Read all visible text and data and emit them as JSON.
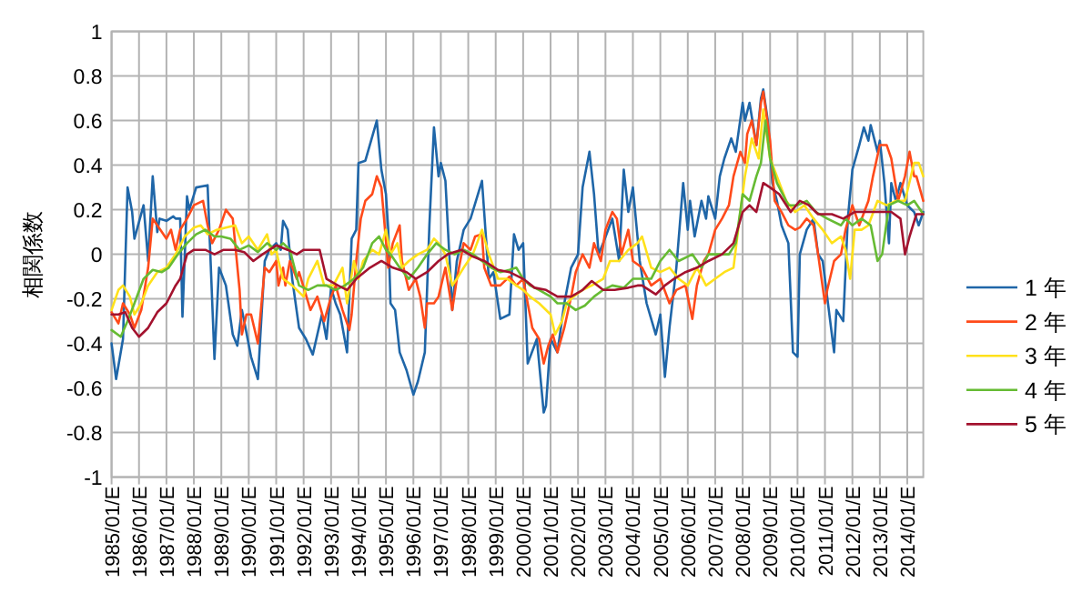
{
  "chart_data": {
    "type": "line",
    "ylabel": "相関係数",
    "xlim": [
      "1985-01",
      "2014-08"
    ],
    "xticks": [
      {
        "value": "1985-01",
        "label": "1985/01/E"
      },
      {
        "value": "1986-01",
        "label": "1986/01/E"
      },
      {
        "value": "1987-01",
        "label": "1987/01/E"
      },
      {
        "value": "1988-01",
        "label": "1988/01/E"
      },
      {
        "value": "1989-01",
        "label": "1989/01/E"
      },
      {
        "value": "1990-01",
        "label": "1990/01/E"
      },
      {
        "value": "1991-01",
        "label": "1991/01/E"
      },
      {
        "value": "1992-01",
        "label": "1992/01/E"
      },
      {
        "value": "1993-01",
        "label": "1993/01/E"
      },
      {
        "value": "1994-01",
        "label": "1994/01/E"
      },
      {
        "value": "1995-01",
        "label": "1995/01/E"
      },
      {
        "value": "1996-01",
        "label": "1996/01/E"
      },
      {
        "value": "1997-01",
        "label": "1997/01/E"
      },
      {
        "value": "1998-01",
        "label": "1998/01/E"
      },
      {
        "value": "1999-01",
        "label": "1999/01/E"
      },
      {
        "value": "2000-01",
        "label": "2000/01/E"
      },
      {
        "value": "2001-01",
        "label": "2001/01/E"
      },
      {
        "value": "2002-01",
        "label": "2002/01/E"
      },
      {
        "value": "2003-01",
        "label": "2003/01/E"
      },
      {
        "value": "2004-01",
        "label": "2004/01/E"
      },
      {
        "value": "2005-01",
        "label": "2005/01/E"
      },
      {
        "value": "2006-01",
        "label": "2006/01/E"
      },
      {
        "value": "2007-01",
        "label": "2007/01/E"
      },
      {
        "value": "2008-01",
        "label": "2008/01/E"
      },
      {
        "value": "2009-01",
        "label": "2009/01/E"
      },
      {
        "value": "2010-01",
        "label": "2010/01/E"
      },
      {
        "value": "2011-01",
        "label": "2011/01/E"
      },
      {
        "value": "2012-01",
        "label": "2012/01/E"
      },
      {
        "value": "2013-01",
        "label": "2013/01/E"
      },
      {
        "value": "2014-01",
        "label": "2014/01/E"
      }
    ],
    "ylim": [
      -1,
      1
    ],
    "yticks": [
      -1,
      -0.8,
      -0.6,
      -0.4,
      -0.2,
      0,
      0.2,
      0.4,
      0.6,
      0.8,
      1
    ],
    "grid": true,
    "legend": "right",
    "series": [
      {
        "name": "1 年",
        "color": "#1f66a8",
        "x": [
          "1985-01",
          "1985-03",
          "1985-06",
          "1985-08",
          "1985-10",
          "1985-11",
          "1986-03",
          "1986-05",
          "1986-07",
          "1986-09",
          "1986-10",
          "1987-01",
          "1987-04",
          "1987-05",
          "1987-07",
          "1987-08",
          "1987-10",
          "1987-11",
          "1988-02",
          "1988-07",
          "1988-08",
          "1988-10",
          "1988-12",
          "1989-03",
          "1989-06",
          "1989-08",
          "1989-10",
          "1989-11",
          "1990-02",
          "1990-05",
          "1990-06",
          "1990-08",
          "1990-10",
          "1991-01",
          "1991-03",
          "1991-04",
          "1991-06",
          "1991-08",
          "1991-11",
          "1992-02",
          "1992-05",
          "1992-07",
          "1992-09",
          "1992-11",
          "1993-01",
          "1993-03",
          "1993-05",
          "1993-08",
          "1993-10",
          "1993-12",
          "1994-01",
          "1994-04",
          "1994-09",
          "1994-11",
          "1995-01",
          "1995-02",
          "1995-03",
          "1995-05",
          "1995-07",
          "1995-10",
          "1996-01",
          "1996-03",
          "1996-06",
          "1996-08",
          "1996-10",
          "1996-12",
          "1997-01",
          "1997-03",
          "1997-06",
          "1997-08",
          "1997-11",
          "1998-02",
          "1998-07",
          "1998-10",
          "1998-12",
          "1999-03",
          "1999-07",
          "1999-09",
          "1999-11",
          "2000-01",
          "2000-03",
          "2000-07",
          "2000-10",
          "2000-11",
          "2001-01",
          "2001-04",
          "2001-07",
          "2001-10",
          "2002-01",
          "2002-03",
          "2002-06",
          "2002-08",
          "2002-10",
          "2002-12",
          "2003-04",
          "2003-07",
          "2003-09",
          "2003-11",
          "2004-01",
          "2004-04",
          "2004-07",
          "2004-11",
          "2005-01",
          "2005-03",
          "2005-05",
          "2005-08",
          "2005-11",
          "2006-01",
          "2006-02",
          "2006-04",
          "2006-07",
          "2006-09",
          "2006-10",
          "2007-01",
          "2007-03",
          "2007-05",
          "2007-08",
          "2007-10",
          "2008-01",
          "2008-02",
          "2008-04",
          "2008-07",
          "2008-09",
          "2008-10",
          "2008-12",
          "2009-02",
          "2009-04",
          "2009-06",
          "2009-09",
          "2009-11",
          "2010-01",
          "2010-02",
          "2010-05",
          "2010-08",
          "2010-10",
          "2010-12",
          "2011-05",
          "2011-06",
          "2011-09",
          "2011-11",
          "2012-01",
          "2012-04",
          "2012-06",
          "2012-08",
          "2012-09",
          "2012-12",
          "2013-01",
          "2013-03",
          "2013-05",
          "2013-06",
          "2013-08",
          "2013-10",
          "2014-01",
          "2014-04",
          "2014-06",
          "2014-08"
        ],
        "values": [
          -0.4,
          -0.56,
          -0.38,
          0.3,
          0.19,
          0.07,
          0.22,
          -0.03,
          0.35,
          0.1,
          0.16,
          0.15,
          0.17,
          0.16,
          0.16,
          -0.28,
          0.26,
          0.2,
          0.3,
          0.31,
          0.05,
          -0.47,
          -0.06,
          -0.14,
          -0.36,
          -0.41,
          -0.25,
          -0.3,
          -0.46,
          -0.56,
          -0.38,
          -0.03,
          0.02,
          0.05,
          0.02,
          0.15,
          0.11,
          -0.11,
          -0.33,
          -0.38,
          -0.45,
          -0.36,
          -0.27,
          -0.38,
          -0.15,
          -0.22,
          -0.27,
          -0.44,
          0.07,
          0.11,
          0.41,
          0.42,
          0.6,
          0.38,
          0.27,
          0.11,
          -0.22,
          -0.25,
          -0.44,
          -0.52,
          -0.63,
          -0.57,
          -0.44,
          0.13,
          0.57,
          0.35,
          0.41,
          0.33,
          -0.25,
          -0.03,
          0.11,
          0.16,
          0.33,
          -0.11,
          -0.08,
          -0.29,
          -0.27,
          0.09,
          0.02,
          0.05,
          -0.49,
          -0.38,
          -0.71,
          -0.68,
          -0.38,
          -0.44,
          -0.22,
          -0.06,
          0.0,
          0.3,
          0.46,
          0.27,
          0.0,
          0.05,
          0.16,
          -0.03,
          0.38,
          0.19,
          0.3,
          -0.03,
          -0.22,
          -0.36,
          -0.27,
          -0.55,
          -0.33,
          -0.06,
          0.32,
          0.11,
          0.24,
          0.08,
          0.24,
          0.16,
          0.26,
          0.16,
          0.35,
          0.43,
          0.52,
          0.46,
          0.68,
          0.6,
          0.68,
          0.49,
          0.7,
          0.74,
          0.6,
          0.32,
          0.24,
          0.13,
          0.05,
          -0.44,
          -0.46,
          0.0,
          0.11,
          0.16,
          0.0,
          -0.03,
          -0.44,
          -0.25,
          -0.3,
          0.16,
          0.38,
          0.49,
          0.57,
          0.51,
          0.58,
          0.46,
          0.51,
          0.32,
          0.05,
          0.32,
          0.24,
          0.32,
          0.22,
          0.19,
          0.13,
          0.19
        ]
      },
      {
        "name": "2 年",
        "color": "#ff4a1a",
        "x": [
          "1985-01",
          "1985-04",
          "1985-06",
          "1985-09",
          "1985-11",
          "1986-02",
          "1986-05",
          "1986-07",
          "1986-09",
          "1987-01",
          "1987-03",
          "1987-05",
          "1987-07",
          "1987-10",
          "1988-01",
          "1988-05",
          "1988-07",
          "1988-09",
          "1988-12",
          "1989-03",
          "1989-06",
          "1989-09",
          "1989-10",
          "1989-12",
          "1990-02",
          "1990-05",
          "1990-08",
          "1990-10",
          "1991-01",
          "1991-02",
          "1991-04",
          "1991-05",
          "1991-07",
          "1991-10",
          "1991-11",
          "1992-04",
          "1992-07",
          "1992-10",
          "1993-01",
          "1993-03",
          "1993-06",
          "1993-09",
          "1993-10",
          "1993-12",
          "1994-02",
          "1994-04",
          "1994-07",
          "1994-09",
          "1994-11",
          "1995-02",
          "1995-04",
          "1995-07",
          "1995-08",
          "1995-11",
          "1996-02",
          "1996-04",
          "1996-06",
          "1996-07",
          "1996-10",
          "1996-12",
          "1997-03",
          "1997-06",
          "1997-08",
          "1997-11",
          "1998-02",
          "1998-04",
          "1998-07",
          "1998-08",
          "1998-11",
          "1999-03",
          "1999-07",
          "1999-10",
          "2000-01",
          "2000-03",
          "2000-05",
          "2000-08",
          "2000-10",
          "2000-12",
          "2001-02",
          "2001-04",
          "2001-07",
          "2001-10",
          "2001-12",
          "2002-03",
          "2002-06",
          "2002-08",
          "2002-11",
          "2003-01",
          "2003-04",
          "2003-06",
          "2003-08",
          "2003-11",
          "2004-01",
          "2004-05",
          "2004-09",
          "2005-01",
          "2005-05",
          "2005-08",
          "2005-12",
          "2006-03",
          "2006-05",
          "2006-08",
          "2006-10",
          "2007-01",
          "2007-04",
          "2007-07",
          "2007-09",
          "2007-12",
          "2008-02",
          "2008-03",
          "2008-05",
          "2008-07",
          "2008-09",
          "2008-10",
          "2009-01",
          "2009-03",
          "2009-06",
          "2009-09",
          "2009-12",
          "2010-02",
          "2010-05",
          "2010-08",
          "2010-10",
          "2011-01",
          "2011-02",
          "2011-05",
          "2011-08",
          "2011-10",
          "2012-01",
          "2012-04",
          "2012-08",
          "2012-10",
          "2013-01",
          "2013-04",
          "2013-06",
          "2013-09",
          "2013-12",
          "2014-02",
          "2014-04",
          "2014-05",
          "2014-08"
        ],
        "values": [
          -0.26,
          -0.31,
          -0.22,
          -0.27,
          -0.33,
          -0.25,
          -0.06,
          0.16,
          0.13,
          0.07,
          0.11,
          0.02,
          0.11,
          0.16,
          0.22,
          0.24,
          0.13,
          0.05,
          0.11,
          0.2,
          0.16,
          -0.16,
          -0.36,
          -0.27,
          -0.27,
          -0.4,
          -0.06,
          -0.08,
          -0.03,
          -0.14,
          -0.06,
          -0.14,
          -0.03,
          -0.11,
          -0.08,
          -0.25,
          -0.19,
          -0.3,
          -0.19,
          -0.14,
          -0.25,
          -0.34,
          -0.27,
          -0.03,
          0.16,
          0.24,
          0.27,
          0.35,
          0.3,
          -0.06,
          0.05,
          0.13,
          -0.03,
          -0.16,
          -0.11,
          -0.19,
          -0.33,
          -0.22,
          -0.22,
          -0.19,
          -0.06,
          -0.25,
          -0.11,
          0.05,
          0.02,
          0.08,
          0.09,
          -0.06,
          -0.14,
          -0.14,
          -0.1,
          -0.14,
          -0.11,
          -0.22,
          -0.33,
          -0.38,
          -0.49,
          -0.41,
          -0.36,
          -0.44,
          -0.33,
          -0.19,
          -0.08,
          0.0,
          -0.06,
          0.05,
          -0.03,
          0.11,
          0.19,
          0.16,
          0.0,
          0.11,
          -0.03,
          -0.06,
          -0.14,
          -0.11,
          -0.22,
          -0.16,
          -0.14,
          -0.29,
          -0.14,
          -0.03,
          0.0,
          0.11,
          0.16,
          0.22,
          0.35,
          0.46,
          0.41,
          0.54,
          0.6,
          0.49,
          0.68,
          0.73,
          0.51,
          0.24,
          0.19,
          0.13,
          0.11,
          0.12,
          0.16,
          0.13,
          0.0,
          -0.22,
          -0.16,
          -0.03,
          0.0,
          0.11,
          0.22,
          0.13,
          0.24,
          0.35,
          0.49,
          0.49,
          0.43,
          0.24,
          0.35,
          0.46,
          0.35,
          0.35,
          0.24
        ]
      },
      {
        "name": "3 年",
        "color": "#ffe11a",
        "x": [
          "1985-01",
          "1985-04",
          "1985-06",
          "1985-09",
          "1985-11",
          "1986-02",
          "1986-05",
          "1986-09",
          "1987-01",
          "1987-05",
          "1987-09",
          "1988-01",
          "1988-04",
          "1988-07",
          "1988-11",
          "1989-03",
          "1989-07",
          "1989-10",
          "1990-01",
          "1990-05",
          "1990-09",
          "1990-11",
          "1991-01",
          "1991-02",
          "1991-04",
          "1991-08",
          "1992-01",
          "1992-03",
          "1992-07",
          "1992-10",
          "1993-02",
          "1993-06",
          "1993-08",
          "1993-11",
          "1994-01",
          "1994-03",
          "1994-07",
          "1994-10",
          "1995-01",
          "1995-03",
          "1995-06",
          "1995-08",
          "1995-11",
          "1996-03",
          "1996-07",
          "1996-10",
          "1996-12",
          "1997-03",
          "1997-06",
          "1997-08",
          "1997-11",
          "1998-03",
          "1998-07",
          "1998-10",
          "1999-02",
          "1999-06",
          "1999-10",
          "2000-01",
          "2000-04",
          "2000-08",
          "2001-01",
          "2001-03",
          "2001-06",
          "2001-08",
          "2001-11",
          "2002-03",
          "2002-07",
          "2002-12",
          "2003-03",
          "2003-07",
          "2003-11",
          "2004-03",
          "2004-05",
          "2004-09",
          "2005-01",
          "2005-05",
          "2005-09",
          "2006-01",
          "2006-05",
          "2006-09",
          "2007-01",
          "2007-05",
          "2007-09",
          "2007-12",
          "2008-02",
          "2008-05",
          "2008-08",
          "2008-10",
          "2009-01",
          "2009-04",
          "2009-08",
          "2009-12",
          "2010-04",
          "2010-08",
          "2010-12",
          "2011-04",
          "2011-08",
          "2011-10",
          "2011-12",
          "2012-02",
          "2012-05",
          "2012-08",
          "2012-12",
          "2013-04",
          "2013-08",
          "2013-12",
          "2014-04",
          "2014-06",
          "2014-08"
        ],
        "values": [
          -0.25,
          -0.16,
          -0.14,
          -0.19,
          -0.27,
          -0.22,
          -0.14,
          -0.08,
          -0.06,
          0.0,
          0.08,
          0.12,
          0.13,
          0.09,
          0.11,
          0.12,
          0.13,
          0.05,
          0.08,
          0.02,
          0.09,
          0.0,
          0.02,
          -0.03,
          -0.11,
          -0.14,
          -0.19,
          -0.11,
          -0.03,
          -0.14,
          -0.14,
          -0.06,
          -0.22,
          -0.03,
          -0.11,
          -0.03,
          0.02,
          0.0,
          0.11,
          0.0,
          0.05,
          -0.06,
          -0.03,
          0.0,
          0.02,
          0.07,
          0.05,
          0.0,
          -0.14,
          -0.11,
          -0.06,
          0.0,
          0.11,
          0.0,
          -0.11,
          -0.11,
          -0.14,
          -0.16,
          -0.19,
          -0.22,
          -0.27,
          -0.36,
          -0.3,
          -0.22,
          -0.19,
          -0.16,
          -0.14,
          -0.11,
          -0.03,
          -0.03,
          0.02,
          0.05,
          0.08,
          -0.06,
          -0.08,
          -0.06,
          -0.11,
          -0.14,
          -0.06,
          -0.14,
          -0.11,
          -0.08,
          -0.06,
          0.19,
          0.35,
          0.52,
          0.43,
          0.65,
          0.43,
          0.35,
          0.24,
          0.19,
          0.22,
          0.16,
          0.11,
          0.05,
          0.08,
          0.02,
          -0.11,
          0.11,
          0.11,
          0.13,
          0.24,
          0.22,
          0.24,
          0.24,
          0.41,
          0.41,
          0.35
        ]
      },
      {
        "name": "4 年",
        "color": "#66bb33",
        "x": [
          "1985-01",
          "1985-05",
          "1985-08",
          "1985-11",
          "1986-03",
          "1986-07",
          "1986-11",
          "1987-02",
          "1987-06",
          "1987-10",
          "1988-02",
          "1988-06",
          "1988-10",
          "1989-01",
          "1989-05",
          "1989-09",
          "1990-01",
          "1990-05",
          "1990-09",
          "1991-01",
          "1991-04",
          "1991-07",
          "1991-11",
          "1992-03",
          "1992-07",
          "1992-11",
          "1993-03",
          "1993-07",
          "1993-11",
          "1994-03",
          "1994-07",
          "1994-10",
          "1995-01",
          "1995-03",
          "1995-07",
          "1995-11",
          "1996-03",
          "1996-07",
          "1996-11",
          "1997-03",
          "1997-07",
          "1997-11",
          "1998-03",
          "1998-07",
          "1998-11",
          "1999-03",
          "1999-07",
          "1999-10",
          "2000-01",
          "2000-04",
          "2000-08",
          "2001-01",
          "2001-04",
          "2001-08",
          "2001-12",
          "2002-04",
          "2002-08",
          "2002-12",
          "2003-04",
          "2003-09",
          "2004-01",
          "2004-05",
          "2004-09",
          "2005-01",
          "2005-05",
          "2005-09",
          "2006-03",
          "2006-07",
          "2006-10",
          "2007-03",
          "2007-07",
          "2007-10",
          "2008-01",
          "2008-04",
          "2008-07",
          "2008-09",
          "2008-11",
          "2009-01",
          "2009-04",
          "2009-09",
          "2010-01",
          "2010-05",
          "2010-09",
          "2011-02",
          "2011-08",
          "2011-10",
          "2012-01",
          "2012-05",
          "2012-09",
          "2012-12",
          "2013-02",
          "2013-05",
          "2013-09",
          "2014-01",
          "2014-04",
          "2014-08"
        ],
        "values": [
          -0.34,
          -0.37,
          -0.3,
          -0.22,
          -0.11,
          -0.07,
          -0.08,
          -0.06,
          0.0,
          0.05,
          0.09,
          0.11,
          0.08,
          0.08,
          0.07,
          0.02,
          0.04,
          0.01,
          0.05,
          0.02,
          0.05,
          0.02,
          -0.14,
          -0.16,
          -0.14,
          -0.14,
          -0.16,
          -0.14,
          -0.11,
          -0.06,
          0.05,
          0.08,
          0.02,
          0.0,
          -0.06,
          -0.11,
          -0.06,
          0.0,
          0.05,
          0.02,
          0.0,
          0.02,
          0.0,
          -0.03,
          -0.06,
          -0.08,
          -0.07,
          -0.06,
          -0.11,
          -0.14,
          -0.16,
          -0.19,
          -0.22,
          -0.22,
          -0.25,
          -0.23,
          -0.19,
          -0.16,
          -0.14,
          -0.15,
          -0.11,
          -0.11,
          -0.11,
          -0.03,
          0.02,
          -0.03,
          0.0,
          -0.06,
          0.0,
          0.0,
          0.0,
          0.05,
          0.27,
          0.24,
          0.35,
          0.41,
          0.6,
          0.43,
          0.32,
          0.22,
          0.22,
          0.24,
          0.19,
          0.16,
          0.13,
          0.16,
          0.13,
          0.16,
          0.13,
          -0.03,
          0.0,
          0.22,
          0.24,
          0.22,
          0.24,
          0.18
        ]
      },
      {
        "name": "5 年",
        "color": "#a3122e",
        "x": [
          "1985-01",
          "1985-04",
          "1985-07",
          "1985-10",
          "1986-01",
          "1986-05",
          "1986-09",
          "1987-01",
          "1987-05",
          "1987-07",
          "1987-10",
          "1988-01",
          "1988-06",
          "1988-10",
          "1989-02",
          "1989-07",
          "1989-11",
          "1990-03",
          "1990-07",
          "1991-01",
          "1991-06",
          "1991-10",
          "1992-01",
          "1992-06",
          "1992-08",
          "1992-11",
          "1993-04",
          "1993-08",
          "1993-12",
          "1994-06",
          "1994-11",
          "1995-04",
          "1995-10",
          "1996-02",
          "1996-07",
          "1996-12",
          "1997-04",
          "1997-10",
          "1998-03",
          "1998-08",
          "1999-02",
          "1999-07",
          "2000-01",
          "2000-06",
          "2000-11",
          "2001-04",
          "2001-10",
          "2002-03",
          "2002-07",
          "2002-12",
          "2003-05",
          "2003-11",
          "2004-03",
          "2004-05",
          "2004-11",
          "2005-03",
          "2005-07",
          "2005-12",
          "2006-05",
          "2006-10",
          "2007-04",
          "2007-09",
          "2008-01",
          "2008-04",
          "2008-07",
          "2008-10",
          "2009-01",
          "2009-05",
          "2009-10",
          "2010-02",
          "2010-06",
          "2010-10",
          "2011-04",
          "2011-09",
          "2012-02",
          "2012-08",
          "2013-01",
          "2013-06",
          "2013-10",
          "2013-12",
          "2014-02",
          "2014-05",
          "2014-08"
        ],
        "values": [
          -0.27,
          -0.27,
          -0.26,
          -0.33,
          -0.37,
          -0.33,
          -0.26,
          -0.22,
          -0.14,
          -0.11,
          0.0,
          0.02,
          0.02,
          0.0,
          0.02,
          0.02,
          0.01,
          -0.03,
          0.0,
          0.04,
          0.02,
          0.0,
          0.02,
          0.02,
          0.02,
          -0.11,
          -0.14,
          -0.16,
          -0.11,
          -0.06,
          -0.03,
          -0.06,
          -0.08,
          -0.11,
          -0.08,
          -0.03,
          0.0,
          0.02,
          -0.01,
          -0.03,
          -0.07,
          -0.08,
          -0.11,
          -0.15,
          -0.16,
          -0.19,
          -0.19,
          -0.16,
          -0.12,
          -0.16,
          -0.16,
          -0.15,
          -0.14,
          -0.14,
          -0.18,
          -0.14,
          -0.11,
          -0.08,
          -0.06,
          -0.03,
          0.0,
          0.05,
          0.19,
          0.22,
          0.19,
          0.32,
          0.3,
          0.27,
          0.19,
          0.24,
          0.22,
          0.18,
          0.18,
          0.16,
          0.19,
          0.19,
          0.19,
          0.19,
          0.16,
          0.0,
          0.08,
          0.18,
          0.18
        ]
      }
    ]
  }
}
